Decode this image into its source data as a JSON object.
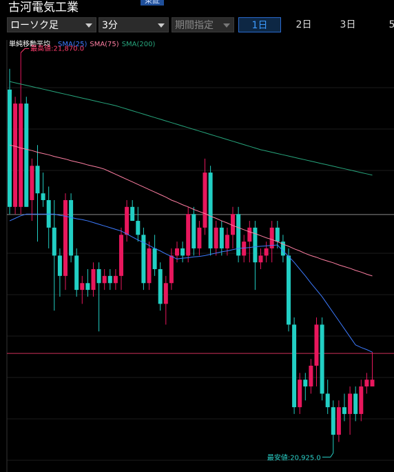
{
  "header": {
    "title": "古河電気工業",
    "market": "東証"
  },
  "toolbar": {
    "chart_type": "ローソク足",
    "interval": "3分",
    "period": "期間指定",
    "tabs": [
      "1日",
      "2日",
      "3日",
      "5"
    ],
    "selected_tab": 0
  },
  "chart_data": {
    "type": "candlestick",
    "legend_title": "単純移動平均",
    "up_color": "#e8175d",
    "down_color": "#22cfc4",
    "ylim": [
      20880,
      21900
    ],
    "open": [
      21783,
      21506,
      21506,
      21750,
      21522,
      21603,
      21538,
      21522,
      21457,
      21391,
      21343,
      21522,
      21391,
      21310,
      21326,
      21310,
      21359,
      21326,
      21343,
      21326,
      21343,
      21440,
      21506,
      21473,
      21440,
      21326,
      21408,
      21359,
      21277,
      21326,
      21391,
      21408,
      21391,
      21489,
      21408,
      21457,
      21587,
      21408,
      21457,
      21408,
      21440,
      21489,
      21391,
      21424,
      21457,
      21375,
      21391,
      21408,
      21457,
      21424,
      21391,
      21228,
      21033,
      21098,
      21082,
      21131,
      21228,
      21065,
      21033,
      20968,
      21033,
      21017,
      21065,
      21017,
      21082,
      21082
    ],
    "high": [
      21832,
      21766,
      21870,
      21766,
      21620,
      21652,
      21587,
      21554,
      21522,
      21408,
      21538,
      21538,
      21408,
      21343,
      21359,
      21375,
      21375,
      21359,
      21359,
      21359,
      21457,
      21522,
      21522,
      21506,
      21457,
      21424,
      21440,
      21375,
      21343,
      21408,
      21424,
      21424,
      21506,
      21506,
      21473,
      21620,
      21603,
      21473,
      21473,
      21457,
      21506,
      21506,
      21440,
      21473,
      21473,
      21408,
      21424,
      21473,
      21473,
      21440,
      21408,
      21245,
      21114,
      21114,
      21147,
      21245,
      21245,
      21098,
      21049,
      21049,
      21065,
      21082,
      21082,
      21098,
      21114,
      21163
    ],
    "low": [
      21489,
      21489,
      21489,
      21506,
      21473,
      21424,
      21506,
      21408,
      21261,
      21294,
      21310,
      21375,
      21294,
      21277,
      21294,
      21294,
      21212,
      21310,
      21310,
      21310,
      21310,
      21424,
      21473,
      21424,
      21310,
      21310,
      21343,
      21261,
      21228,
      21310,
      21375,
      21375,
      21375,
      21391,
      21391,
      21440,
      21391,
      21391,
      21391,
      21391,
      21408,
      21375,
      21375,
      21375,
      21310,
      21359,
      21375,
      21375,
      21408,
      21375,
      21212,
      21017,
      21017,
      21049,
      21065,
      21082,
      21049,
      21017,
      20925,
      20951,
      21000,
      20968,
      21000,
      21000,
      21065,
      21082
    ],
    "close": [
      21506,
      21750,
      21750,
      21506,
      21603,
      21538,
      21522,
      21457,
      21391,
      21343,
      21522,
      21391,
      21310,
      21326,
      21310,
      21359,
      21326,
      21343,
      21326,
      21343,
      21440,
      21506,
      21473,
      21440,
      21326,
      21408,
      21359,
      21277,
      21326,
      21391,
      21408,
      21391,
      21489,
      21408,
      21457,
      21587,
      21408,
      21457,
      21408,
      21440,
      21489,
      21391,
      21424,
      21457,
      21375,
      21391,
      21408,
      21457,
      21424,
      21391,
      21228,
      21033,
      21098,
      21082,
      21131,
      21228,
      21065,
      21033,
      20968,
      21033,
      21017,
      21065,
      21017,
      21082,
      21098,
      21098
    ],
    "series": [
      {
        "name": "SMA(25)",
        "color": "#3d7bff",
        "values": [
          21473,
          21479,
          21485,
          21489,
          21489,
          21489,
          21489,
          21489,
          21489,
          21486,
          21484,
          21481,
          21478,
          21476,
          21473,
          21469,
          21465,
          21461,
          21457,
          21453,
          21449,
          21442,
          21435,
          21428,
          21422,
          21415,
          21408,
          21402,
          21395,
          21389,
          21383,
          21385,
          21386,
          21388,
          21389,
          21391,
          21394,
          21397,
          21400,
          21402,
          21405,
          21408,
          21409,
          21410,
          21412,
          21413,
          21414,
          21415,
          21416,
          21402,
          21389,
          21375,
          21359,
          21343,
          21326,
          21310,
          21294,
          21275,
          21256,
          21237,
          21218,
          21199,
          21180,
          21174,
          21169,
          21163
        ]
      },
      {
        "name": "SMA(75)",
        "color": "#ff7fa3",
        "values": [
          21652,
          21649,
          21645,
          21642,
          21639,
          21635,
          21632,
          21629,
          21625,
          21622,
          21619,
          21615,
          21612,
          21609,
          21605,
          21602,
          21599,
          21595,
          21589,
          21583,
          21577,
          21571,
          21565,
          21559,
          21553,
          21547,
          21541,
          21535,
          21529,
          21522,
          21517,
          21511,
          21506,
          21500,
          21495,
          21490,
          21484,
          21479,
          21473,
          21468,
          21462,
          21457,
          21452,
          21447,
          21443,
          21438,
          21433,
          21429,
          21424,
          21418,
          21413,
          21407,
          21402,
          21396,
          21391,
          21387,
          21382,
          21378,
          21374,
          21369,
          21365,
          21361,
          21356,
          21352,
          21347,
          21343
        ]
      },
      {
        "name": "SMA(200)",
        "color": "#27a67d",
        "values": [
          21802,
          21799,
          21796,
          21793,
          21790,
          21787,
          21784,
          21781,
          21778,
          21775,
          21772,
          21769,
          21766,
          21763,
          21760,
          21757,
          21754,
          21751,
          21748,
          21745,
          21741,
          21737,
          21733,
          21729,
          21725,
          21721,
          21717,
          21713,
          21709,
          21705,
          21701,
          21697,
          21693,
          21689,
          21685,
          21681,
          21677,
          21673,
          21669,
          21665,
          21661,
          21657,
          21653,
          21649,
          21645,
          21641,
          21638,
          21635,
          21632,
          21629,
          21626,
          21623,
          21620,
          21617,
          21614,
          21611,
          21608,
          21605,
          21602,
          21599,
          21596,
          21593,
          21590,
          21587,
          21584,
          21581
        ]
      }
    ],
    "ref_lines": [
      {
        "value": 21488,
        "color": "#8a8a8a"
      },
      {
        "value": 21160,
        "color": "#d0305a"
      }
    ],
    "annotations": [
      {
        "text": "最高値:21,870.0",
        "value": 21870,
        "color": "#ff3d6e"
      },
      {
        "text": "最安値:20,925.0",
        "value": 20925,
        "color": "#2ad0c8"
      }
    ]
  }
}
